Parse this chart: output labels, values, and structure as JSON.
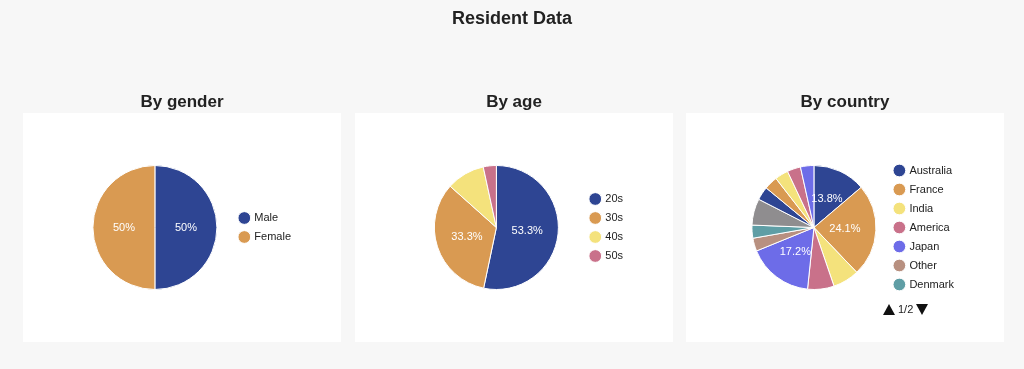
{
  "chart_data": [
    {
      "type": "other",
      "title": "Resident Data"
    },
    {
      "type": "pie",
      "title": "By gender",
      "categories": [
        "Male",
        "Female"
      ],
      "values": [
        50,
        50
      ],
      "colors": [
        "#2e4593",
        "#d99a52"
      ],
      "value_labels": [
        "50%",
        "50%"
      ],
      "legend": "right"
    },
    {
      "type": "pie",
      "title": "By age",
      "categories": [
        "20s",
        "30s",
        "40s",
        "50s"
      ],
      "values": [
        53.3,
        33.3,
        10,
        3.4
      ],
      "colors": [
        "#2e4593",
        "#d99a52",
        "#f4e27c",
        "#c9718a"
      ],
      "value_labels": [
        "53.3%",
        "33.3%",
        null,
        null
      ],
      "legend": "right"
    },
    {
      "type": "pie",
      "title": "By country",
      "categories": [
        "Australia",
        "France",
        "India",
        "America",
        "Japan",
        "Other",
        "Denmark",
        null,
        null,
        null,
        null,
        null,
        null
      ],
      "values": [
        13.8,
        24.1,
        6.9,
        6.9,
        17.2,
        3.4,
        3.4,
        6.9,
        3.5,
        3.5,
        3.5,
        3.5,
        3.5
      ],
      "colors": [
        "#2e4593",
        "#d99a52",
        "#f4e27c",
        "#c9718a",
        "#6d6ce8",
        "#b89080",
        "#5f9ea5",
        "#8f8d8f",
        "#2e4593",
        "#d99a52",
        "#f4e27c",
        "#c9718a",
        "#6d6ce8"
      ],
      "value_labels": [
        "13.8%",
        "24.1%",
        null,
        null,
        "17.2%",
        null,
        null,
        null,
        null,
        null,
        null,
        null,
        null
      ],
      "legend": "right",
      "annotations": [
        "1/2"
      ]
    }
  ]
}
